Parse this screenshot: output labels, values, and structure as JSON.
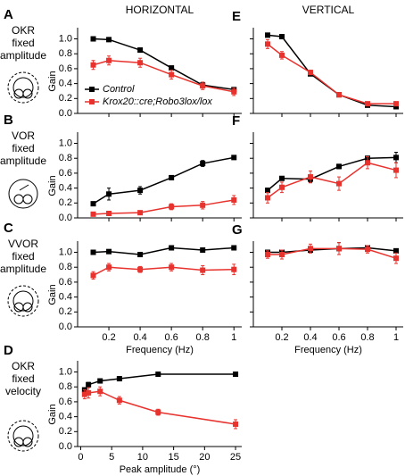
{
  "rows": [
    {
      "letter": "A",
      "lines": [
        "OKR",
        "fixed",
        "amplitude"
      ]
    },
    {
      "letter": "B",
      "lines": [
        "VOR",
        "fixed",
        "amplitude"
      ]
    },
    {
      "letter": "C",
      "lines": [
        "VVOR",
        "fixed",
        "amplitude"
      ]
    },
    {
      "letter": "D",
      "lines": [
        "OKR",
        "fixed",
        "velocity"
      ]
    }
  ],
  "chart_data": [
    {
      "type": "line",
      "title": "HORIZONTAL",
      "ylabel": "Gain",
      "legend": "lower left",
      "x": [
        0.1,
        0.2,
        0.4,
        0.6,
        0.8,
        1
      ],
      "xlim": [
        0,
        1.05
      ],
      "xticks": [
        0.2,
        0.4,
        0.6,
        0.8,
        1
      ],
      "show_xtick_labels": false,
      "ylim": [
        0,
        1.15
      ],
      "yticks": [
        {
          "value": 0,
          "label": "0.0"
        },
        0.2,
        0.4,
        0.6,
        0.8,
        {
          "value": 1,
          "label": "1.0"
        }
      ],
      "show_ytick_labels": true,
      "series": [
        {
          "name": "Control",
          "color": "#000000",
          "values": [
            1.0,
            0.99,
            0.85,
            0.61,
            0.38,
            0.32
          ],
          "errors": [
            0.02,
            0.01,
            0.02,
            0.02,
            0.02,
            0.02
          ]
        },
        {
          "name": "Krox20::cre;Robo3lox/lox",
          "color": "#e8322d",
          "values": [
            0.65,
            0.71,
            0.68,
            0.52,
            0.37,
            0.29
          ],
          "errors": [
            0.06,
            0.06,
            0.06,
            0.06,
            0.05,
            0.05
          ]
        }
      ]
    },
    {
      "type": "line",
      "title": "VERTICAL",
      "panel": "E",
      "x": [
        0.1,
        0.2,
        0.4,
        0.6,
        0.8,
        1
      ],
      "xlim": [
        0,
        1.05
      ],
      "xticks": [
        0.2,
        0.4,
        0.6,
        0.8,
        1
      ],
      "show_xtick_labels": false,
      "ylim": [
        0,
        1.15
      ],
      "yticks": [
        0,
        0.2,
        0.4,
        0.6,
        0.8,
        1
      ],
      "show_ytick_labels": false,
      "series": [
        {
          "color": "#000000",
          "values": [
            1.05,
            1.03,
            0.53,
            0.25,
            0.11,
            0.09
          ],
          "errors": [
            0.02,
            0.02,
            0.02,
            0.01,
            0.01,
            0.01
          ]
        },
        {
          "color": "#e8322d",
          "values": [
            0.93,
            0.78,
            0.55,
            0.25,
            0.13,
            0.13
          ],
          "errors": [
            0.06,
            0.05,
            0.03,
            0.02,
            0.02,
            0.02
          ]
        }
      ]
    },
    {
      "type": "line",
      "ylabel": "Gain",
      "x": [
        0.1,
        0.2,
        0.4,
        0.6,
        0.8,
        1
      ],
      "xlim": [
        0,
        1.05
      ],
      "xticks": [
        0.2,
        0.4,
        0.6,
        0.8,
        1
      ],
      "show_xtick_labels": false,
      "ylim": [
        0,
        1.15
      ],
      "yticks": [
        {
          "value": 0,
          "label": "0.0"
        },
        0.2,
        0.4,
        0.6,
        0.8,
        {
          "value": 1,
          "label": "1.0"
        }
      ],
      "show_ytick_labels": true,
      "series": [
        {
          "color": "#000000",
          "values": [
            0.19,
            0.32,
            0.37,
            0.54,
            0.73,
            0.81
          ],
          "errors": [
            0.02,
            0.08,
            0.05,
            0.02,
            0.04,
            0.02
          ]
        },
        {
          "color": "#e8322d",
          "values": [
            0.05,
            0.06,
            0.07,
            0.15,
            0.17,
            0.24
          ],
          "errors": [
            0.02,
            0.02,
            0.02,
            0.04,
            0.05,
            0.06
          ]
        }
      ]
    },
    {
      "type": "line",
      "panel": "F",
      "x": [
        0.1,
        0.2,
        0.4,
        0.6,
        0.8,
        1
      ],
      "xlim": [
        0,
        1.05
      ],
      "xticks": [
        0.2,
        0.4,
        0.6,
        0.8,
        1
      ],
      "show_xtick_labels": false,
      "ylim": [
        0,
        1.15
      ],
      "yticks": [
        0,
        0.2,
        0.4,
        0.6,
        0.8,
        1
      ],
      "show_ytick_labels": false,
      "series": [
        {
          "color": "#000000",
          "values": [
            0.37,
            0.53,
            0.52,
            0.69,
            0.8,
            0.81
          ],
          "errors": [
            0.03,
            0.02,
            0.04,
            0.03,
            0.02,
            0.07
          ]
        },
        {
          "color": "#e8322d",
          "values": [
            0.27,
            0.41,
            0.55,
            0.46,
            0.74,
            0.64
          ],
          "errors": [
            0.07,
            0.07,
            0.08,
            0.09,
            0.08,
            0.1
          ]
        }
      ]
    },
    {
      "type": "line",
      "ylabel": "Gain",
      "xlabel": "Frequency (Hz)",
      "x": [
        0.1,
        0.2,
        0.4,
        0.6,
        0.8,
        1
      ],
      "xlim": [
        0,
        1.05
      ],
      "xticks": [
        0.2,
        0.4,
        0.6,
        0.8,
        1
      ],
      "show_xtick_labels": true,
      "ylim": [
        0,
        1.15
      ],
      "yticks": [
        {
          "value": 0,
          "label": "0.0"
        },
        0.2,
        0.4,
        0.6,
        0.8,
        {
          "value": 1,
          "label": "1.0"
        }
      ],
      "show_ytick_labels": true,
      "series": [
        {
          "color": "#000000",
          "values": [
            1.0,
            1.01,
            0.97,
            1.06,
            1.03,
            1.06
          ],
          "errors": [
            0.02,
            0.02,
            0.02,
            0.02,
            0.02,
            0.02
          ]
        },
        {
          "color": "#e8322d",
          "values": [
            0.69,
            0.8,
            0.77,
            0.8,
            0.76,
            0.77
          ],
          "errors": [
            0.05,
            0.05,
            0.04,
            0.05,
            0.06,
            0.07
          ]
        }
      ]
    },
    {
      "type": "line",
      "panel": "G",
      "xlabel": "Frequency (Hz)",
      "x": [
        0.1,
        0.2,
        0.4,
        0.6,
        0.8,
        1
      ],
      "xlim": [
        0,
        1.05
      ],
      "xticks": [
        0.2,
        0.4,
        0.6,
        0.8,
        1
      ],
      "show_xtick_labels": true,
      "ylim": [
        0,
        1.15
      ],
      "yticks": [
        0,
        0.2,
        0.4,
        0.6,
        0.8,
        1
      ],
      "show_ytick_labels": false,
      "series": [
        {
          "color": "#000000",
          "values": [
            1.0,
            1.0,
            1.03,
            1.05,
            1.06,
            1.02
          ],
          "errors": [
            0.02,
            0.03,
            0.03,
            0.08,
            0.03,
            0.02
          ]
        },
        {
          "color": "#e8322d",
          "values": [
            0.97,
            0.97,
            1.05,
            1.05,
            1.04,
            0.92
          ],
          "errors": [
            0.05,
            0.06,
            0.06,
            0.08,
            0.05,
            0.07
          ]
        }
      ]
    },
    {
      "type": "line",
      "ylabel": "Gain",
      "xlabel": "Peak amplitude (°)",
      "x": [
        0.63,
        1.25,
        3.13,
        6.25,
        12.5,
        25
      ],
      "xlim": [
        -0.5,
        26
      ],
      "xticks": [
        0,
        5,
        10,
        15,
        20,
        25
      ],
      "show_xtick_labels": true,
      "ylim": [
        0,
        1.15
      ],
      "yticks": [
        {
          "value": 0,
          "label": "0.0"
        },
        0.2,
        0.4,
        0.6,
        0.8,
        {
          "value": 1,
          "label": "1.0"
        }
      ],
      "show_ytick_labels": true,
      "series": [
        {
          "color": "#000000",
          "values": [
            0.76,
            0.83,
            0.88,
            0.91,
            0.97,
            0.97
          ],
          "errors": [
            0.03,
            0.03,
            0.02,
            0.02,
            0.01,
            0.01
          ]
        },
        {
          "color": "#e8322d",
          "values": [
            0.7,
            0.72,
            0.74,
            0.62,
            0.46,
            0.3
          ],
          "errors": [
            0.06,
            0.07,
            0.06,
            0.05,
            0.04,
            0.06
          ]
        }
      ]
    }
  ]
}
